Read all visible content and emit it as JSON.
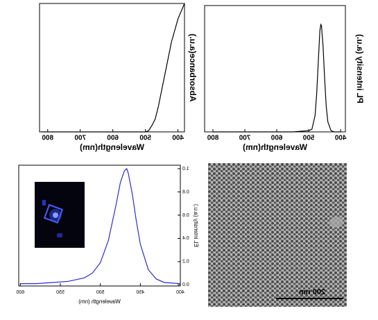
{
  "chart_data": [
    {
      "type": "line",
      "x_label": "Wavelength(nm)",
      "y_label": "Absorbance(a.u.)",
      "xlim": [
        380,
        825
      ],
      "xticks": [
        400,
        500,
        600,
        700,
        800
      ],
      "ylim": [
        0,
        1
      ],
      "x": [
        380,
        385,
        400,
        420,
        440,
        460,
        470,
        480,
        490,
        500,
        550,
        600,
        700,
        800,
        820
      ],
      "series": [
        {
          "color": "#000000",
          "values": [
            1.0,
            0.97,
            0.88,
            0.7,
            0.45,
            0.2,
            0.1,
            0.05,
            0.01,
            0,
            0,
            0,
            0,
            0,
            0
          ]
        }
      ]
    },
    {
      "type": "line",
      "x_label": "Wavelength(nm)",
      "y_label": "PL intensity (a.u.)",
      "xlim": [
        385,
        826
      ],
      "xticks": [
        400,
        500,
        600,
        700,
        800
      ],
      "ylim": [
        0,
        1
      ],
      "x": [
        400,
        420,
        430,
        440,
        445,
        450,
        455,
        460,
        462,
        465,
        470,
        475,
        480,
        490,
        500,
        550,
        600,
        700,
        800
      ],
      "series": [
        {
          "color": "#000000",
          "values": [
            0,
            0,
            0.01,
            0.08,
            0.2,
            0.42,
            0.68,
            0.84,
            0.85,
            0.8,
            0.55,
            0.3,
            0.13,
            0.02,
            0.01,
            0,
            0,
            0,
            0
          ]
        }
      ]
    },
    {
      "type": "line",
      "x_label": "Wavelength (nm)",
      "y_label": "EL intensity (a.u.)",
      "xlim": [
        400,
        602
      ],
      "xticks": [
        400,
        450,
        500,
        550,
        600
      ],
      "ylim": [
        -0.01,
        1.03
      ],
      "yticks": [
        {
          "value": 0,
          "label": "0.0"
        },
        0.2,
        0.4,
        0.6,
        0.8,
        {
          "value": 1,
          "label": "1.0"
        }
      ],
      "x": [
        400,
        420,
        430,
        440,
        450,
        455,
        460,
        465,
        467,
        470,
        475,
        480,
        490,
        500,
        510,
        520,
        540,
        560,
        580,
        600
      ],
      "series": [
        {
          "color": "#2b2bd6",
          "values": [
            0.01,
            0.02,
            0.05,
            0.13,
            0.35,
            0.55,
            0.78,
            0.96,
            1.0,
            0.98,
            0.88,
            0.7,
            0.38,
            0.19,
            0.1,
            0.06,
            0.03,
            0.02,
            0.01,
            0.01
          ]
        }
      ]
    }
  ],
  "sem_image": {
    "scale_bar": "200 nm"
  }
}
